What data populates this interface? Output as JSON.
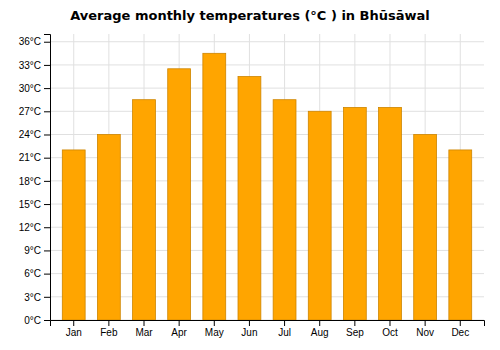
{
  "chart_data": {
    "type": "bar",
    "title": "Average monthly temperatures (°C ) in Bhūsāwal",
    "categories": [
      "Jan",
      "Feb",
      "Mar",
      "Apr",
      "May",
      "Jun",
      "Jul",
      "Aug",
      "Sep",
      "Oct",
      "Nov",
      "Dec"
    ],
    "values": [
      22,
      24,
      28.5,
      32.5,
      34.5,
      31.5,
      28.5,
      27,
      27.5,
      27.5,
      24,
      22
    ],
    "color": "#FFA500",
    "ylim": [
      0,
      37
    ],
    "yticks": [
      {
        "value": 0,
        "label": "0°C"
      },
      {
        "value": 3,
        "label": "3°C"
      },
      {
        "value": 6,
        "label": "6°C"
      },
      {
        "value": 9,
        "label": "9°C"
      },
      {
        "value": 12,
        "label": "12°C"
      },
      {
        "value": 15,
        "label": "15°C"
      },
      {
        "value": 18,
        "label": "18°C"
      },
      {
        "value": 21,
        "label": "21°C"
      },
      {
        "value": 24,
        "label": "24°C"
      },
      {
        "value": 27,
        "label": "27°C"
      },
      {
        "value": 30,
        "label": "30°C"
      },
      {
        "value": 33,
        "label": "33°C"
      },
      {
        "value": 36,
        "label": "36°C"
      }
    ],
    "grid": true
  }
}
